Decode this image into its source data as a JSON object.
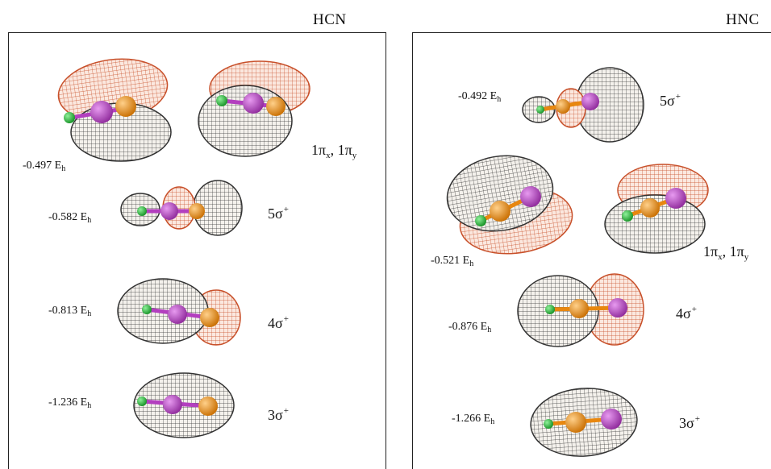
{
  "colors": {
    "grey_lobe": "#2a2a2a",
    "red_lobe": "#c8502a",
    "hydrogen": "#22b830",
    "carbon": "#e8870f",
    "nitrogen": "#b33fbf"
  },
  "panels": {
    "left": {
      "title": "HCN",
      "orbitals": [
        {
          "energy_value": "-0.497 E",
          "energy_sub": "h",
          "label": "1π",
          "label_sub_x": "x",
          "label_sep": ", 1π",
          "label_sub_y": "y"
        },
        {
          "energy_value": "-0.582 E",
          "energy_sub": "h",
          "label": "5σ",
          "label_sup": "+"
        },
        {
          "energy_value": "-0.813 E",
          "energy_sub": "h",
          "label": "4σ",
          "label_sup": "+"
        },
        {
          "energy_value": "-1.236 E",
          "energy_sub": "h",
          "label": "3σ",
          "label_sup": "+"
        }
      ]
    },
    "right": {
      "title": "HNC",
      "orbitals": [
        {
          "energy_value": "-0.492 E",
          "energy_sub": "h",
          "label": "5σ",
          "label_sup": "+"
        },
        {
          "energy_value": "-0.521 E",
          "energy_sub": "h",
          "label": "1π",
          "label_sub_x": "x",
          "label_sep": ", 1π",
          "label_sub_y": "y"
        },
        {
          "energy_value": "-0.876 E",
          "energy_sub": "h",
          "label": "4σ",
          "label_sup": "+"
        },
        {
          "energy_value": "-1.266 E",
          "energy_sub": "h",
          "label": "3σ",
          "label_sup": "+"
        }
      ]
    }
  }
}
